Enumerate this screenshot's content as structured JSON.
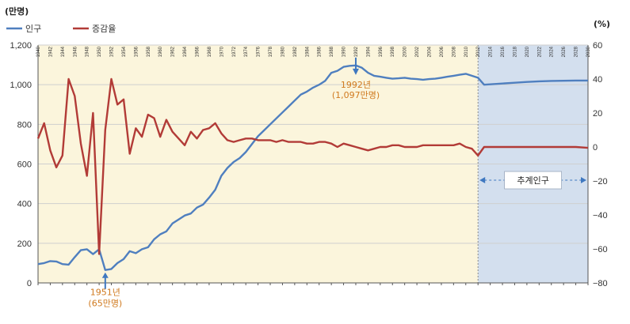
{
  "chart_data": {
    "type": "line",
    "y_left_unit": "(만명)",
    "y_right_unit": "(%)",
    "y_left_range": [
      0,
      1200
    ],
    "y_left_ticks": [
      "0",
      "200",
      "400",
      "600",
      "800",
      "1,000",
      "1,200"
    ],
    "y_left_values": [
      0,
      200,
      400,
      600,
      800,
      1000,
      1200
    ],
    "y_right_range": [
      -80,
      60
    ],
    "y_right_ticks": [
      "−80",
      "−60",
      "−40",
      "−20",
      "0",
      "20",
      "40",
      "60"
    ],
    "y_right_values": [
      -80,
      -60,
      -40,
      -20,
      0,
      20,
      40,
      60
    ],
    "x_range": [
      1940,
      2030
    ],
    "x_ticks": [
      "1940",
      "1942",
      "1944",
      "1946",
      "1948",
      "1950",
      "1952",
      "1954",
      "1956",
      "1958",
      "1960",
      "1962",
      "1964",
      "1966",
      "1968",
      "1970",
      "1972",
      "1974",
      "1976",
      "1978",
      "1980",
      "1982",
      "1984",
      "1986",
      "1988",
      "1990",
      "1992",
      "1994",
      "1996",
      "1998",
      "2000",
      "2002",
      "2004",
      "2006",
      "2008",
      "2010",
      "2012",
      "2014",
      "2016",
      "2018",
      "2020",
      "2022",
      "2024",
      "2026",
      "2028",
      "2030"
    ],
    "projection_start": 2012,
    "projection_label": "추계인구",
    "grid": true,
    "legend_position": "top-left",
    "series": [
      {
        "name": "인구",
        "axis": "left",
        "color": "#4f7fbf",
        "points": [
          [
            1940,
            95
          ],
          [
            1941,
            100
          ],
          [
            1942,
            110
          ],
          [
            1943,
            108
          ],
          [
            1944,
            95
          ],
          [
            1945,
            92
          ],
          [
            1946,
            130
          ],
          [
            1947,
            165
          ],
          [
            1948,
            170
          ],
          [
            1949,
            145
          ],
          [
            1950,
            170
          ],
          [
            1951,
            65
          ],
          [
            1952,
            70
          ],
          [
            1953,
            100
          ],
          [
            1954,
            120
          ],
          [
            1955,
            160
          ],
          [
            1956,
            150
          ],
          [
            1957,
            170
          ],
          [
            1958,
            180
          ],
          [
            1959,
            220
          ],
          [
            1960,
            245
          ],
          [
            1961,
            260
          ],
          [
            1962,
            300
          ],
          [
            1963,
            320
          ],
          [
            1964,
            340
          ],
          [
            1965,
            350
          ],
          [
            1966,
            380
          ],
          [
            1967,
            395
          ],
          [
            1968,
            430
          ],
          [
            1969,
            470
          ],
          [
            1970,
            540
          ],
          [
            1971,
            580
          ],
          [
            1972,
            610
          ],
          [
            1973,
            630
          ],
          [
            1974,
            660
          ],
          [
            1975,
            700
          ],
          [
            1976,
            740
          ],
          [
            1977,
            770
          ],
          [
            1978,
            800
          ],
          [
            1979,
            830
          ],
          [
            1980,
            860
          ],
          [
            1981,
            890
          ],
          [
            1982,
            920
          ],
          [
            1983,
            950
          ],
          [
            1984,
            965
          ],
          [
            1985,
            985
          ],
          [
            1986,
            1000
          ],
          [
            1987,
            1020
          ],
          [
            1988,
            1060
          ],
          [
            1989,
            1070
          ],
          [
            1990,
            1090
          ],
          [
            1991,
            1095
          ],
          [
            1992,
            1097
          ],
          [
            1993,
            1085
          ],
          [
            1994,
            1060
          ],
          [
            1995,
            1045
          ],
          [
            1996,
            1040
          ],
          [
            1997,
            1035
          ],
          [
            1998,
            1030
          ],
          [
            1999,
            1032
          ],
          [
            2000,
            1035
          ],
          [
            2001,
            1030
          ],
          [
            2002,
            1028
          ],
          [
            2003,
            1025
          ],
          [
            2004,
            1028
          ],
          [
            2005,
            1030
          ],
          [
            2006,
            1035
          ],
          [
            2007,
            1040
          ],
          [
            2008,
            1045
          ],
          [
            2009,
            1050
          ],
          [
            2010,
            1055
          ],
          [
            2011,
            1045
          ],
          [
            2012,
            1035
          ],
          [
            2013,
            1000
          ],
          [
            2014,
            1002
          ],
          [
            2016,
            1006
          ],
          [
            2018,
            1010
          ],
          [
            2020,
            1014
          ],
          [
            2022,
            1017
          ],
          [
            2024,
            1019
          ],
          [
            2026,
            1020
          ],
          [
            2028,
            1021
          ],
          [
            2030,
            1021
          ]
        ]
      },
      {
        "name": "증감율",
        "axis": "right",
        "color": "#b23b37",
        "points": [
          [
            1940,
            5
          ],
          [
            1941,
            14
          ],
          [
            1942,
            -2
          ],
          [
            1943,
            -12
          ],
          [
            1944,
            -5
          ],
          [
            1945,
            40
          ],
          [
            1946,
            30
          ],
          [
            1947,
            2
          ],
          [
            1948,
            -17
          ],
          [
            1949,
            20
          ],
          [
            1950,
            -63
          ],
          [
            1951,
            10
          ],
          [
            1952,
            40
          ],
          [
            1953,
            25
          ],
          [
            1954,
            28
          ],
          [
            1955,
            -4
          ],
          [
            1956,
            11
          ],
          [
            1957,
            6
          ],
          [
            1958,
            19
          ],
          [
            1959,
            17
          ],
          [
            1960,
            6
          ],
          [
            1961,
            16
          ],
          [
            1962,
            9
          ],
          [
            1963,
            5
          ],
          [
            1964,
            1
          ],
          [
            1965,
            9
          ],
          [
            1966,
            5
          ],
          [
            1967,
            10
          ],
          [
            1968,
            11
          ],
          [
            1969,
            14
          ],
          [
            1970,
            8
          ],
          [
            1971,
            4
          ],
          [
            1972,
            3
          ],
          [
            1973,
            4
          ],
          [
            1974,
            5
          ],
          [
            1975,
            5
          ],
          [
            1976,
            4
          ],
          [
            1977,
            4
          ],
          [
            1978,
            4
          ],
          [
            1979,
            3
          ],
          [
            1980,
            4
          ],
          [
            1981,
            3
          ],
          [
            1982,
            3
          ],
          [
            1983,
            3
          ],
          [
            1984,
            2
          ],
          [
            1985,
            2
          ],
          [
            1986,
            3
          ],
          [
            1987,
            3
          ],
          [
            1988,
            2
          ],
          [
            1989,
            0
          ],
          [
            1990,
            2
          ],
          [
            1991,
            1
          ],
          [
            1992,
            0
          ],
          [
            1993,
            -1
          ],
          [
            1994,
            -2
          ],
          [
            1995,
            -1
          ],
          [
            1996,
            0
          ],
          [
            1997,
            0
          ],
          [
            1998,
            1
          ],
          [
            1999,
            1
          ],
          [
            2000,
            0
          ],
          [
            2001,
            0
          ],
          [
            2002,
            0
          ],
          [
            2003,
            1
          ],
          [
            2004,
            1
          ],
          [
            2005,
            1
          ],
          [
            2006,
            1
          ],
          [
            2007,
            1
          ],
          [
            2008,
            1
          ],
          [
            2009,
            2
          ],
          [
            2010,
            0
          ],
          [
            2011,
            -1
          ],
          [
            2012,
            -5
          ],
          [
            2013,
            0
          ],
          [
            2014,
            0
          ],
          [
            2016,
            0
          ],
          [
            2018,
            0
          ],
          [
            2020,
            0
          ],
          [
            2022,
            0
          ],
          [
            2024,
            0
          ],
          [
            2026,
            0
          ],
          [
            2028,
            0
          ],
          [
            2030,
            -0.5
          ]
        ]
      }
    ],
    "annotations": [
      {
        "x": 1951,
        "y": 65,
        "axis": "left",
        "lines": [
          "1951년",
          "(65만명)"
        ],
        "arrow": "up"
      },
      {
        "x": 1992,
        "y": 1097,
        "axis": "left",
        "lines": [
          "1992년",
          "(1,097만명)"
        ],
        "arrow": "down"
      }
    ]
  }
}
